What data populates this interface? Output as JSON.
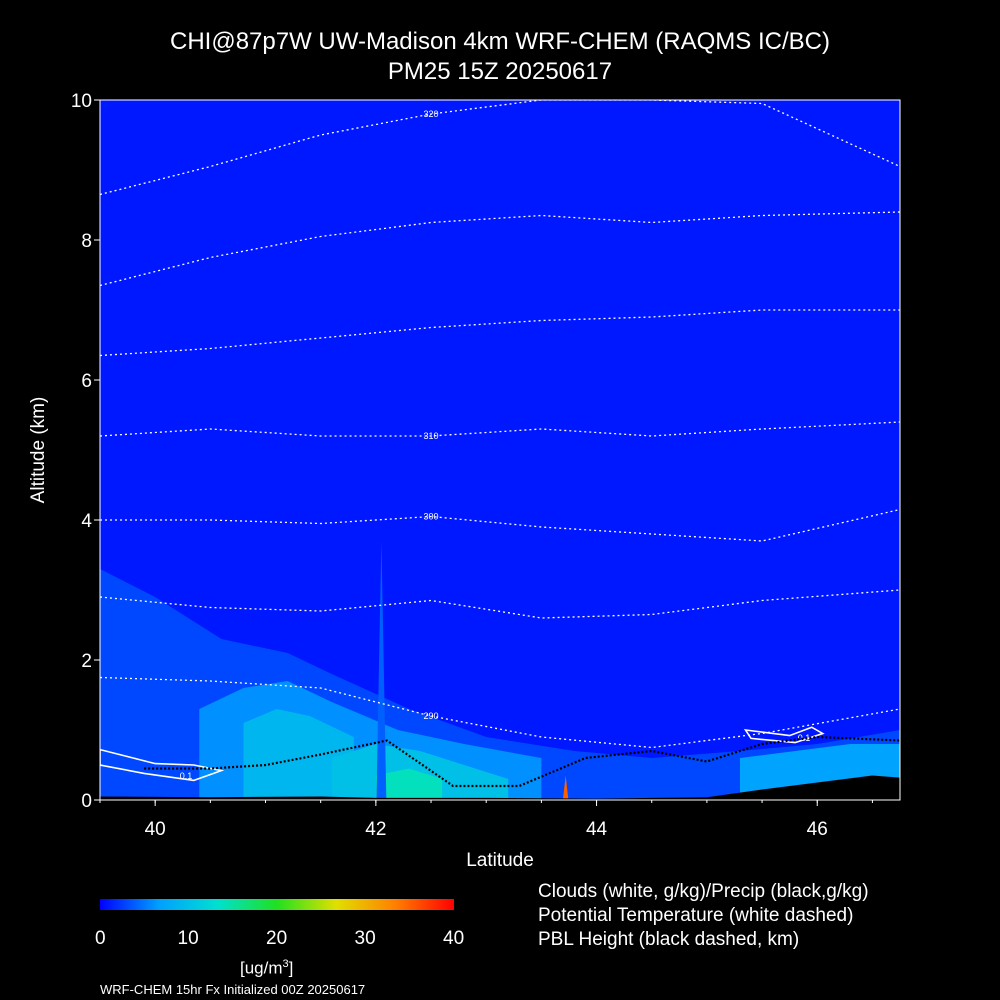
{
  "title_line1": "CHI@87p7W UW-Madison 4km WRF-CHEM (RAQMS IC/BC)",
  "title_line2": "PM25 15Z 20250617",
  "colors": {
    "background": "#000000",
    "field_base": "#1e22f0",
    "contour": "#ffffff",
    "terrain": "#000000"
  },
  "chart_data": {
    "type": "heatmap",
    "variable": "PM25",
    "xlabel": "Latitude",
    "ylabel": "Altitude (km)",
    "xlim": [
      39.5,
      46.75
    ],
    "ylim": [
      0,
      10
    ],
    "x_ticks": [
      "40",
      "42",
      "44",
      "46"
    ],
    "y_ticks": [
      "0",
      "2",
      "4",
      "6",
      "8",
      "10"
    ],
    "colorbar": {
      "units": "[ug/m",
      "units_sup": "3",
      "units_close": "]",
      "range": [
        0,
        40
      ],
      "tick_labels": [
        "0",
        "10",
        "20",
        "30",
        "40"
      ],
      "colors": [
        "#0000ff",
        "#00a0ff",
        "#00e0d0",
        "#20e020",
        "#e0e000",
        "#ff8000",
        "#ff0000"
      ]
    },
    "pm25_background_ugm3": 1,
    "pm25_regions": [
      {
        "lat": [
          39.5,
          40.0,
          40.6,
          41.2,
          41.6,
          42.3,
          43.0,
          43.8,
          44.5,
          45.3,
          46.0,
          46.75
        ],
        "top_km": [
          3.3,
          2.9,
          2.3,
          2.1,
          1.8,
          1.3,
          0.9,
          0.7,
          0.6,
          0.7,
          0.8,
          1.0
        ],
        "value": 3
      },
      {
        "lat": [
          40.4,
          40.8,
          41.2,
          41.6,
          42.2,
          42.8,
          43.5
        ],
        "top_km": [
          1.3,
          1.6,
          1.7,
          1.4,
          1.0,
          0.8,
          0.6
        ],
        "value": 6
      },
      {
        "lat": [
          40.8,
          41.1,
          41.4,
          41.8
        ],
        "top_km": [
          1.1,
          1.3,
          1.2,
          0.9
        ],
        "value": 9
      },
      {
        "lat": [
          41.6,
          42.0,
          42.4,
          42.8,
          43.2
        ],
        "top_km": [
          0.6,
          0.8,
          0.7,
          0.5,
          0.3
        ],
        "value": 10
      },
      {
        "lat": [
          45.3,
          45.8,
          46.3,
          46.75
        ],
        "top_km": [
          0.6,
          0.7,
          0.8,
          0.8
        ],
        "value": 7
      },
      {
        "lat": [
          42.0,
          42.3,
          42.6
        ],
        "top_km": [
          0.35,
          0.45,
          0.3
        ],
        "value": 14
      }
    ],
    "pm25_plumes": [
      {
        "lat": 42.05,
        "top_km": 3.7,
        "width_deg": 0.09,
        "value": 4
      },
      {
        "lat": 43.72,
        "top_km": 0.35,
        "width_deg": 0.05,
        "value": 35
      }
    ],
    "potential_temperature_K": [
      {
        "label": "290",
        "lat": [
          39.5,
          40.5,
          41.5,
          42.5,
          43.5,
          44.5,
          45.5,
          46.75
        ],
        "alt_km": [
          1.75,
          1.7,
          1.6,
          1.2,
          0.9,
          0.75,
          0.95,
          1.3
        ]
      },
      {
        "lat": [
          39.5,
          40.5,
          41.5,
          42.5,
          43.5,
          44.5,
          45.5,
          46.75
        ],
        "alt_km": [
          2.9,
          2.75,
          2.7,
          2.85,
          2.6,
          2.65,
          2.85,
          3.0
        ]
      },
      {
        "label": "300",
        "lat": [
          39.5,
          40.5,
          41.5,
          42.5,
          43.5,
          44.5,
          45.5,
          46.75
        ],
        "alt_km": [
          4.0,
          4.0,
          3.95,
          4.05,
          3.9,
          3.8,
          3.7,
          4.15
        ]
      },
      {
        "label": "310",
        "lat": [
          39.5,
          40.5,
          41.5,
          42.5,
          43.5,
          44.5,
          45.5,
          46.75
        ],
        "alt_km": [
          5.2,
          5.3,
          5.2,
          5.2,
          5.3,
          5.2,
          5.3,
          5.4
        ]
      },
      {
        "lat": [
          39.5,
          40.5,
          41.5,
          42.5,
          43.5,
          44.5,
          45.5,
          46.75
        ],
        "alt_km": [
          6.35,
          6.45,
          6.6,
          6.75,
          6.85,
          6.9,
          7.0,
          7.0
        ]
      },
      {
        "lat": [
          39.5,
          40.5,
          41.5,
          42.5,
          43.5,
          44.5,
          45.5,
          46.75
        ],
        "alt_km": [
          7.35,
          7.75,
          8.05,
          8.25,
          8.35,
          8.25,
          8.35,
          8.4
        ]
      },
      {
        "label": "320",
        "lat": [
          39.5,
          40.5,
          41.5,
          42.5,
          43.5,
          44.5,
          45.5,
          46.75
        ],
        "alt_km": [
          8.65,
          9.05,
          9.5,
          9.8,
          10.0,
          10.0,
          9.95,
          9.05
        ]
      }
    ],
    "clouds_contour": {
      "label": "0.1",
      "regions": [
        {
          "lat": [
            39.5,
            40.0,
            40.35,
            40.6,
            40.35,
            39.9,
            39.5
          ],
          "alt_km": [
            0.72,
            0.52,
            0.5,
            0.42,
            0.28,
            0.38,
            0.5
          ]
        },
        {
          "lat": [
            45.35,
            45.75,
            45.95,
            46.05,
            45.8,
            45.4
          ],
          "alt_km": [
            1.0,
            0.92,
            1.04,
            0.95,
            0.82,
            0.88
          ]
        }
      ]
    },
    "precip_pbl_height_km": {
      "lat": [
        39.9,
        40.5,
        41.0,
        41.5,
        42.1,
        42.7,
        43.3,
        43.9,
        44.5,
        45.0,
        45.5,
        46.0,
        46.75
      ],
      "values": [
        0.45,
        0.45,
        0.5,
        0.65,
        0.85,
        0.2,
        0.2,
        0.6,
        0.7,
        0.55,
        0.8,
        0.9,
        0.85
      ]
    },
    "terrain_km": {
      "lat": [
        39.5,
        40.5,
        41.5,
        42.0,
        43.0,
        44.0,
        44.5,
        45.0,
        45.5,
        46.0,
        46.5,
        46.75
      ],
      "alt_km": [
        0.05,
        0.04,
        0.05,
        0.03,
        0.03,
        0.02,
        0.03,
        0.04,
        0.15,
        0.25,
        0.35,
        0.32
      ]
    },
    "annotations": [
      "Clouds (white, g/kg)/Precip (black,g/kg)",
      "Potential Temperature (white dashed)",
      "PBL Height (black dashed, km)"
    ]
  },
  "footer": "WRF-CHEM 15hr  Fx Initialized 00Z 20250617"
}
